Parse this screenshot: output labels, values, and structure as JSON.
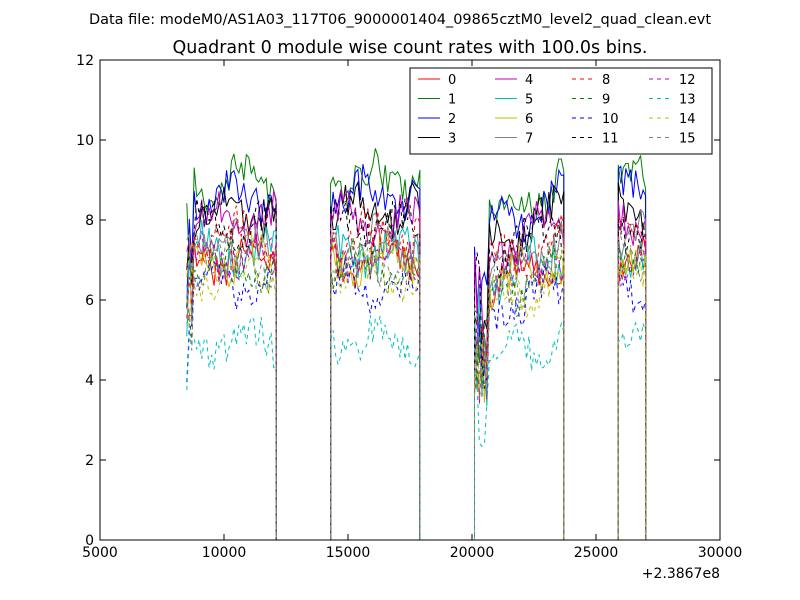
{
  "chart_data": {
    "type": "line",
    "suptitle": "Data file: modeM0/AS1A03_117T06_9000001404_09865cztM0_level2_quad_clean.evt",
    "title": "Quadrant 0 module wise count rates with 100.0s bins.",
    "xlabel": "",
    "ylabel": "",
    "offset_label": "+2.3867e8",
    "xlim": [
      5000,
      30000
    ],
    "ylim": [
      0,
      12
    ],
    "xticks": [
      5000,
      10000,
      15000,
      20000,
      25000,
      30000
    ],
    "xtick_labels": [
      "5000",
      "10000",
      "15000",
      "20000",
      "25000",
      "30000"
    ],
    "yticks": [
      0,
      2,
      4,
      6,
      8,
      10,
      12
    ],
    "ytick_labels": [
      "0",
      "2",
      "4",
      "6",
      "8",
      "10",
      "12"
    ],
    "grid": false,
    "legend_position": "top-right",
    "legend_columns": 4,
    "segments": [
      {
        "start": 8500,
        "end": 12100
      },
      {
        "start": 14300,
        "end": 17900
      },
      {
        "start": 20100,
        "end": 23700
      },
      {
        "start": 25900,
        "end": 27000
      }
    ],
    "zero_segments": [
      {
        "start": 12100,
        "end": 14300
      },
      {
        "start": 17900,
        "end": 20100
      },
      {
        "start": 23700,
        "end": 25900
      }
    ],
    "series": [
      {
        "name": "0",
        "color": "#ff0000",
        "dash": "solid",
        "level": 7.0
      },
      {
        "name": "1",
        "color": "#008000",
        "dash": "solid",
        "level": 9.0
      },
      {
        "name": "2",
        "color": "#0000ff",
        "dash": "solid",
        "level": 8.6
      },
      {
        "name": "3",
        "color": "#000000",
        "dash": "solid",
        "level": 8.2
      },
      {
        "name": "4",
        "color": "#bf00bf",
        "dash": "solid",
        "level": 8.0
      },
      {
        "name": "5",
        "color": "#00bfbf",
        "dash": "solid",
        "level": 7.2
      },
      {
        "name": "6",
        "color": "#bfbf00",
        "dash": "solid",
        "level": 7.0
      },
      {
        "name": "7",
        "color": "#808080",
        "dash": "solid",
        "level": 7.5
      },
      {
        "name": "8",
        "color": "#ff0000",
        "dash": "dashed",
        "level": 7.6
      },
      {
        "name": "9",
        "color": "#008000",
        "dash": "dashed",
        "level": 6.8
      },
      {
        "name": "10",
        "color": "#0000ff",
        "dash": "dashed",
        "level": 6.3
      },
      {
        "name": "11",
        "color": "#000000",
        "dash": "dashed",
        "level": 7.9
      },
      {
        "name": "12",
        "color": "#bf00bf",
        "dash": "dashed",
        "level": 7.1
      },
      {
        "name": "13",
        "color": "#00bfbf",
        "dash": "dashed",
        "level": 5.0
      },
      {
        "name": "14",
        "color": "#bfbf00",
        "dash": "dashed",
        "level": 6.6
      },
      {
        "name": "15",
        "color": "#808080",
        "dash": "dashed",
        "level": 6.9
      }
    ]
  }
}
